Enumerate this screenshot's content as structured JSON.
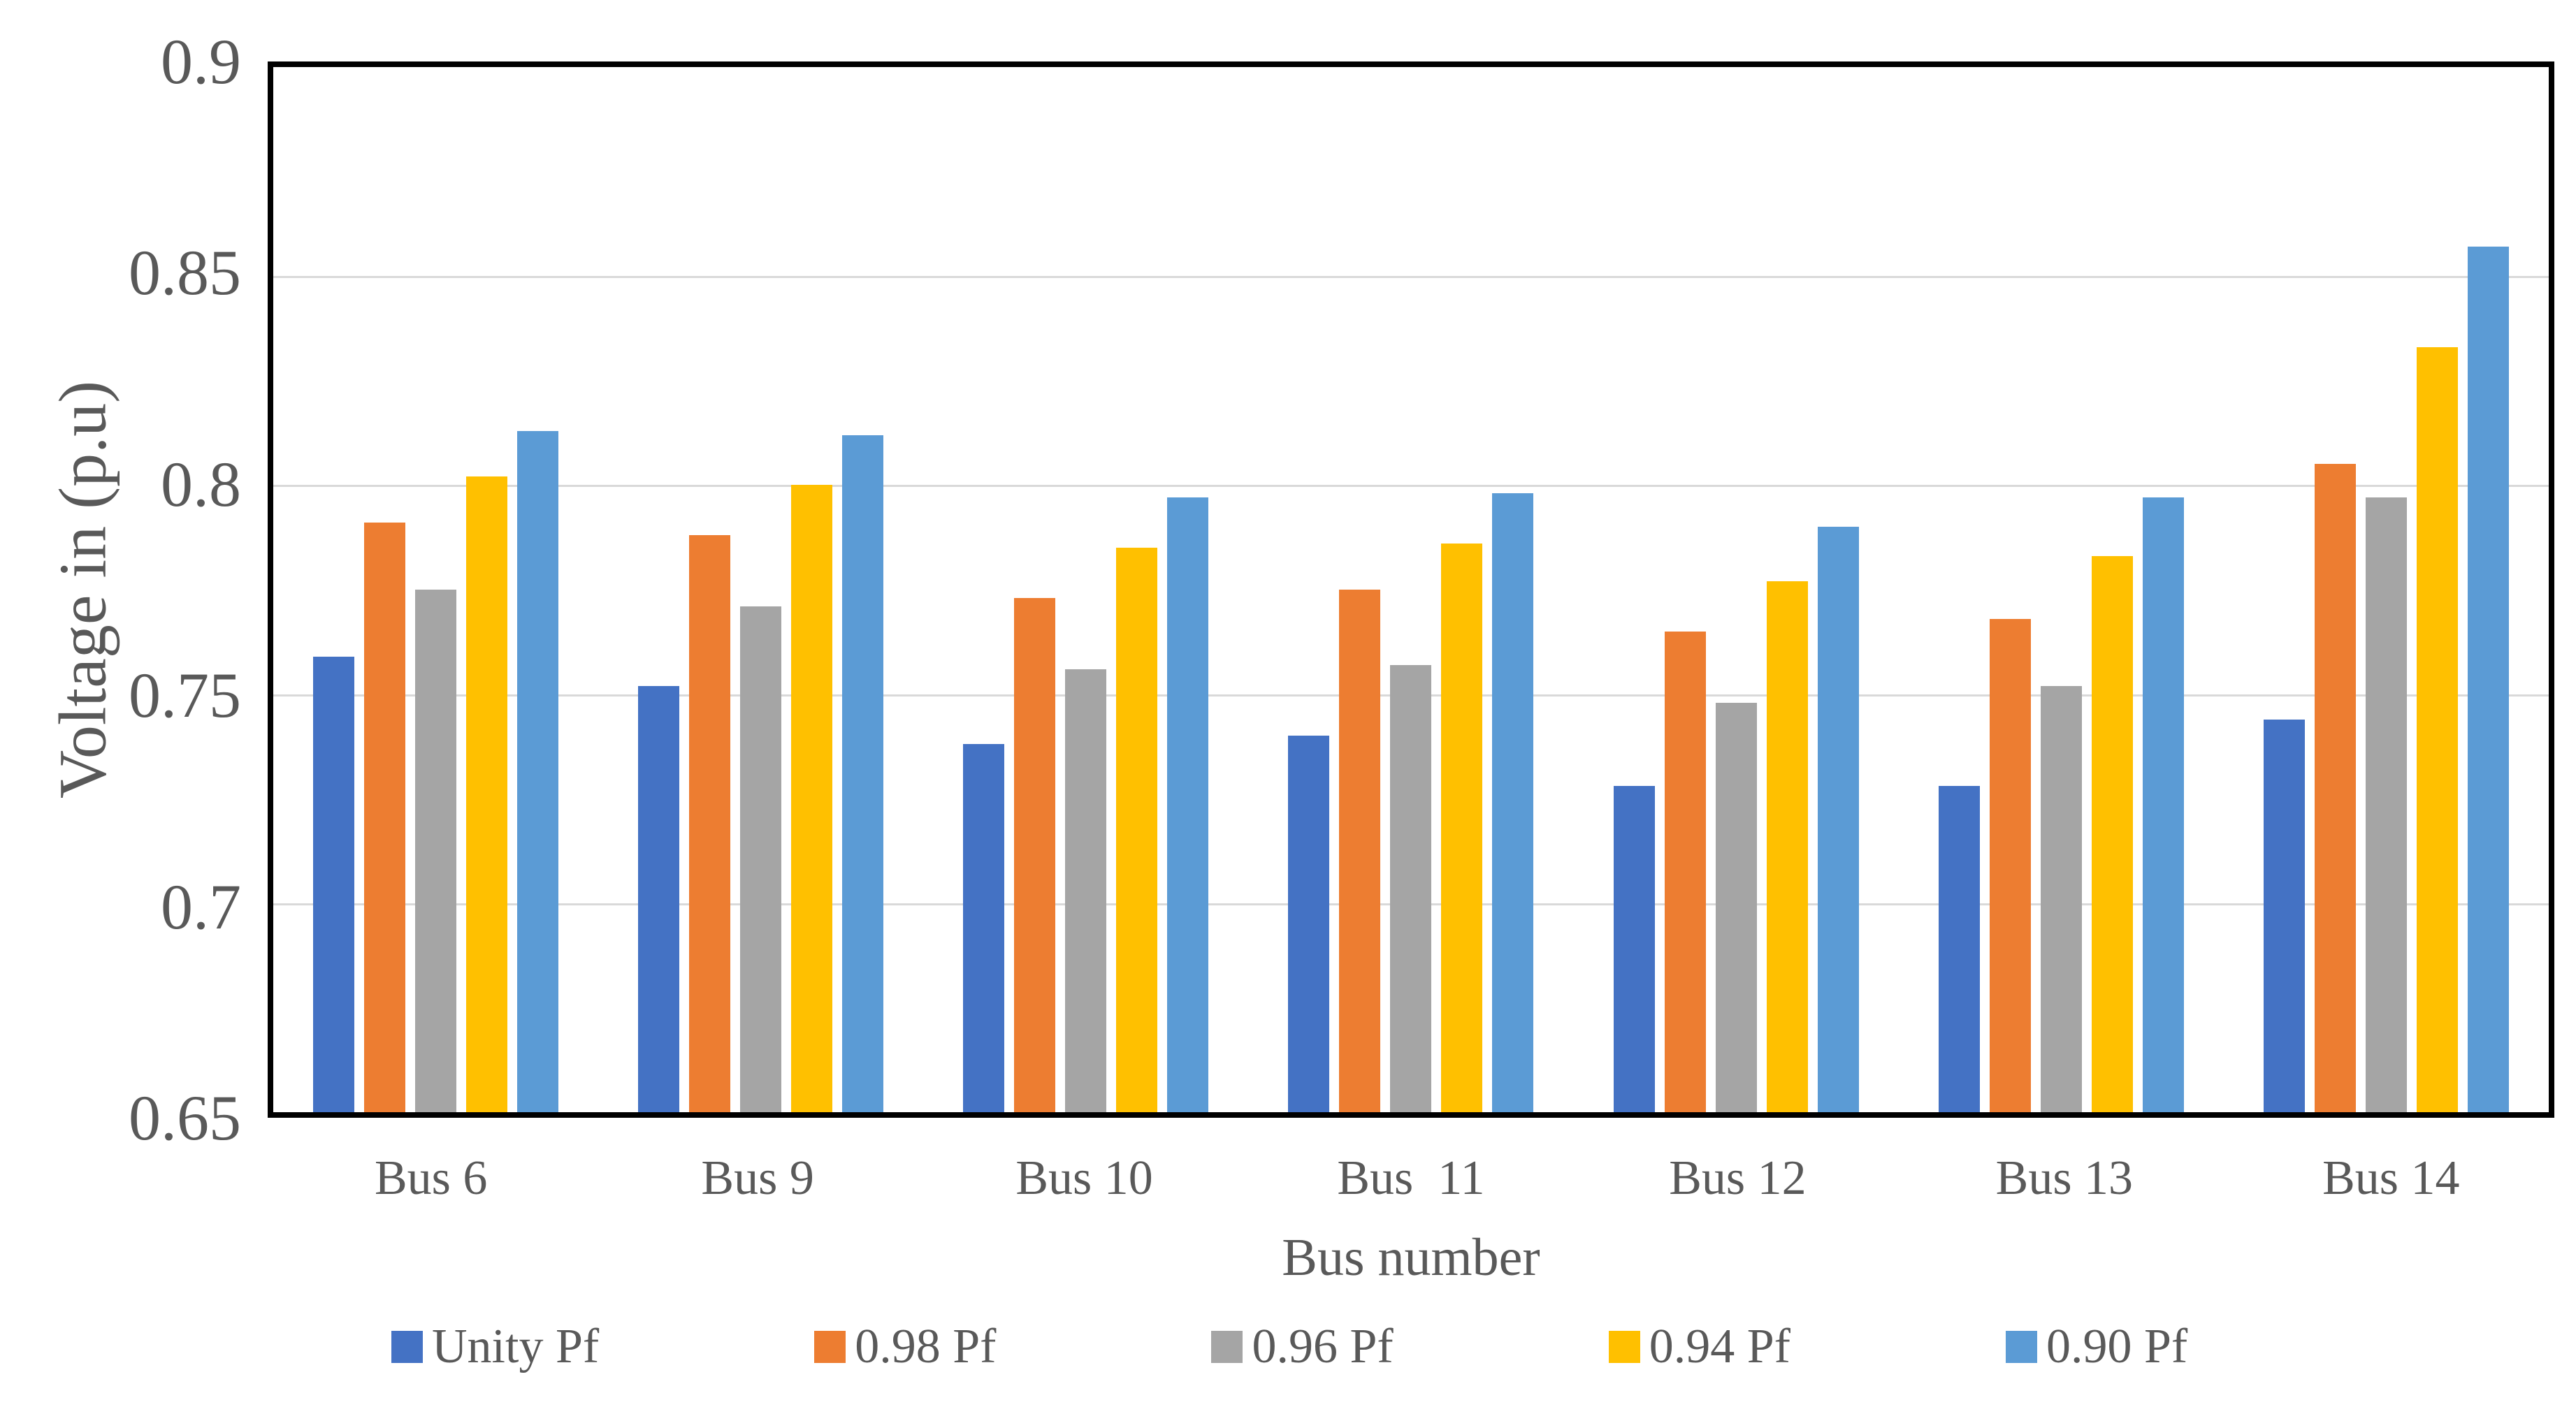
{
  "chart_data": {
    "type": "bar",
    "title": "",
    "xlabel": "Bus number",
    "ylabel": "Voltage in (p.u)",
    "categories": [
      "Bus 6",
      "Bus 9",
      "Bus 10",
      "Bus  11",
      "Bus 12",
      "Bus 13",
      "Bus 14"
    ],
    "series": [
      {
        "name": "Unity Pf",
        "color": "#4472C4",
        "values": [
          0.759,
          0.752,
          0.738,
          0.74,
          0.728,
          0.728,
          0.744
        ]
      },
      {
        "name": "0.98 Pf",
        "color": "#ED7D31",
        "values": [
          0.791,
          0.788,
          0.773,
          0.775,
          0.765,
          0.768,
          0.805
        ]
      },
      {
        "name": "0.96 Pf",
        "color": "#A5A5A5",
        "values": [
          0.775,
          0.771,
          0.756,
          0.757,
          0.748,
          0.752,
          0.797
        ]
      },
      {
        "name": "0.94 Pf",
        "color": "#FFC000",
        "values": [
          0.802,
          0.8,
          0.785,
          0.786,
          0.777,
          0.783,
          0.833
        ]
      },
      {
        "name": "0.90 Pf",
        "color": "#5B9BD5",
        "values": [
          0.813,
          0.812,
          0.797,
          0.798,
          0.79,
          0.797,
          0.857
        ]
      }
    ],
    "ylim": [
      0.65,
      0.9
    ],
    "ytick_step": 0.05,
    "yticks": [
      "0.9",
      "0.85",
      "0.8",
      "0.75",
      "0.7",
      "0.65"
    ],
    "grid": true,
    "gridline_color": "#D9D9D9",
    "axis_border_color": "#000000",
    "text_color": "#595959",
    "legend_position": "bottom",
    "legend": [
      "Unity Pf",
      "0.98 Pf",
      "0.96 Pf",
      "0.94 Pf",
      "0.90 Pf"
    ]
  }
}
